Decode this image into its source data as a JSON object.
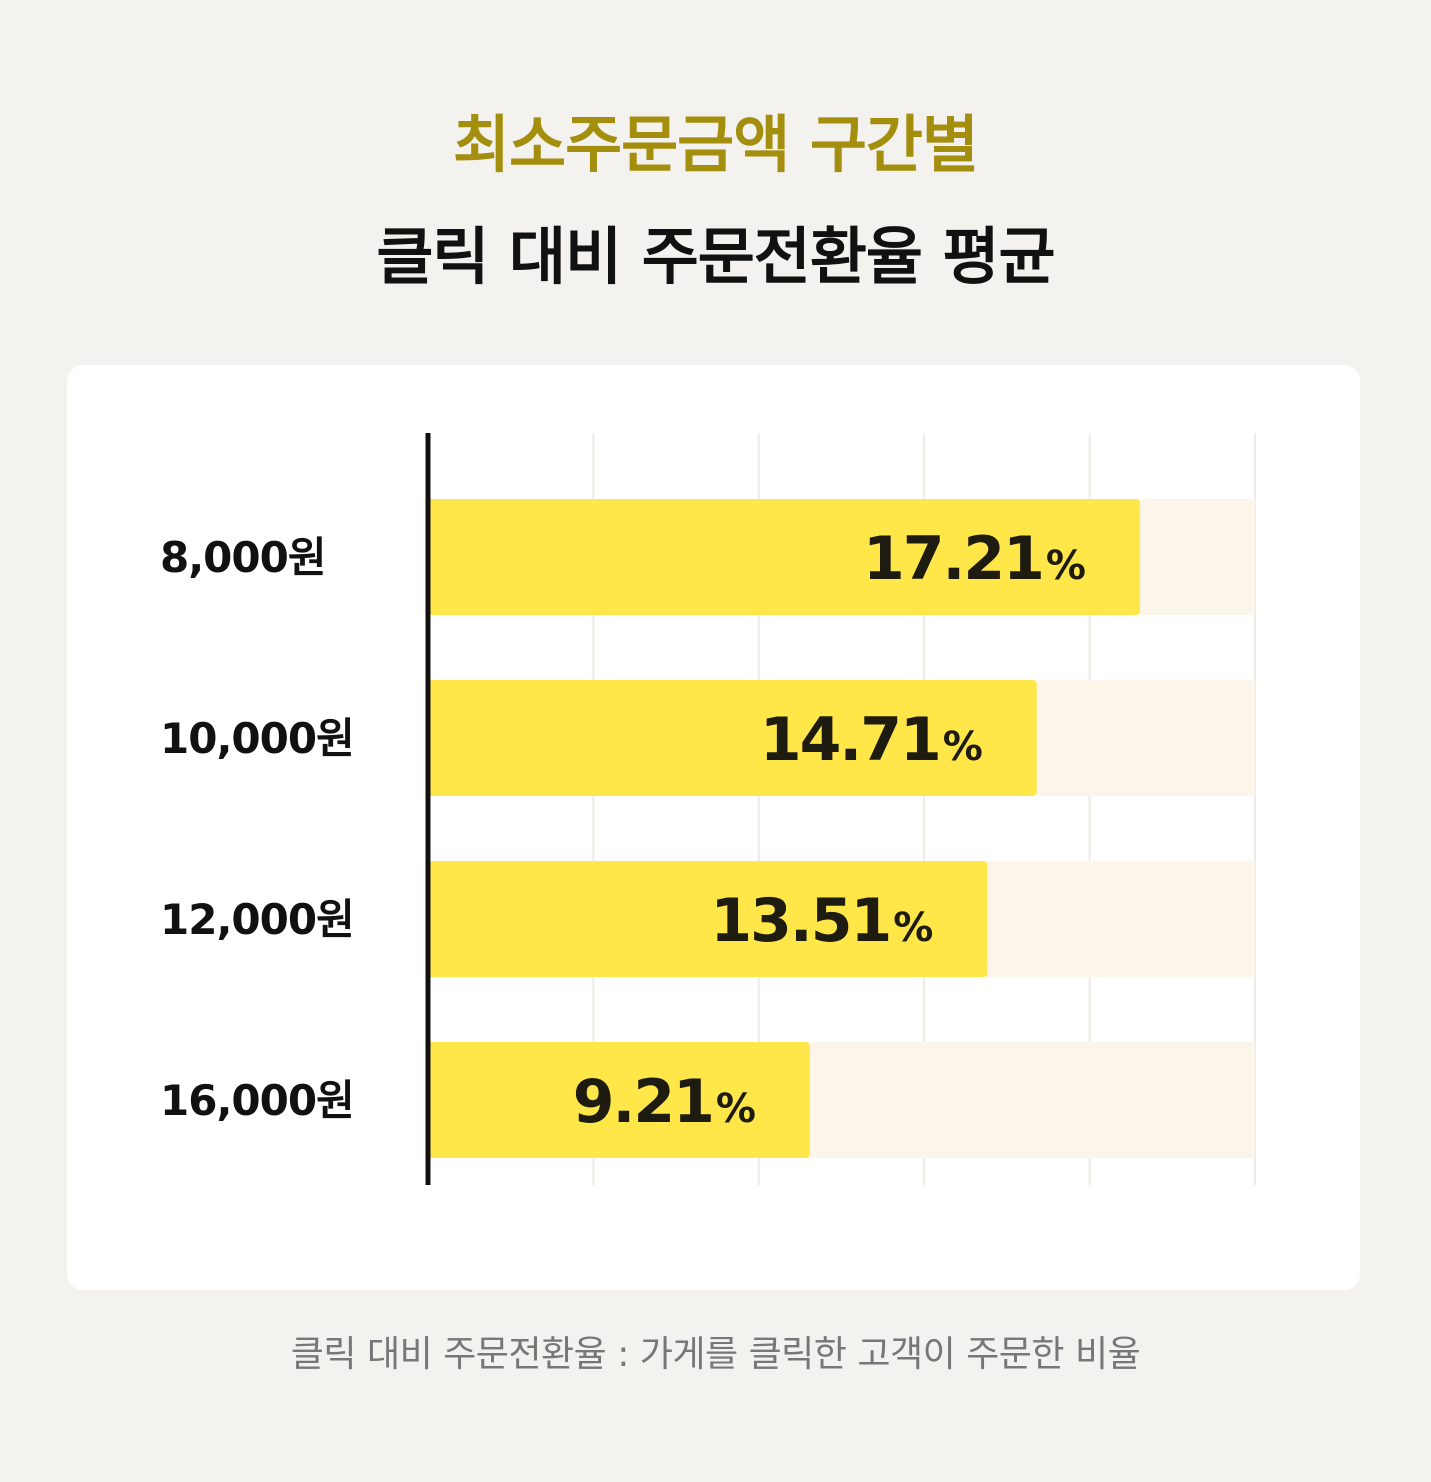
{
  "header": {
    "title_line1": "최소주문금액 구간별",
    "title_line2": "클릭 대비 주문전환율 평균"
  },
  "colors": {
    "title_accent": "#a38e0e",
    "bar": "#ffe74a",
    "track": "#fcf6ea",
    "grid": "#ecebe6",
    "axis": "#111111",
    "value_text": "#1e1b10"
  },
  "chart_data": {
    "type": "bar",
    "orientation": "horizontal",
    "categories": [
      "8,000원",
      "10,000원",
      "12,000원",
      "16,000원"
    ],
    "values": [
      17.21,
      14.71,
      13.51,
      9.21
    ],
    "value_suffix": "%",
    "xlim": [
      0,
      20
    ],
    "grid": true,
    "gridline_count": 5
  },
  "footnote": "클릭 대비 주문전환율 : 가게를 클릭한 고객이 주문한 비율"
}
